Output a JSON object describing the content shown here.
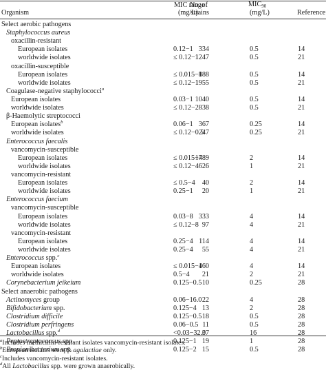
{
  "header": {
    "organism": "Organism",
    "strains_line1": "No. of",
    "strains_line2": "strains",
    "mic_range_line1": "MIC range",
    "mic_range_line2": "(mg/L)",
    "mic90_main": "MIC",
    "mic90_sub": "90",
    "mic90_line2": "(mg/L)",
    "reference": "Reference"
  },
  "rows": [
    {
      "org": "Select aerobic pathogens",
      "indent": 0
    },
    {
      "org": "Staphylococcus aureus",
      "italic": true,
      "indent": 1
    },
    {
      "org": "oxacillin-resistant",
      "indent": 2
    },
    {
      "org": "European isolates",
      "indent": 3,
      "n": "334",
      "range": "0.12−1",
      "mic90": "0.5",
      "ref": "14"
    },
    {
      "org": "worldwide isolates",
      "indent": 3,
      "n": "1247",
      "range": "≤ 0.12−1",
      "mic90": "0.5",
      "ref": "21"
    },
    {
      "org": "oxacillin-susceptible",
      "indent": 2
    },
    {
      "org": "European isolates",
      "indent": 3,
      "n": "888",
      "range": "≤ 0.015−1",
      "mic90": "0.5",
      "ref": "14"
    },
    {
      "org": "worldwide isolates",
      "indent": 3,
      "n": "1955",
      "range": "≤ 0.12−1",
      "mic90": "0.5",
      "ref": "21"
    },
    {
      "org": "Coagulase-negative staphylococci",
      "sup": "a",
      "indent": 1
    },
    {
      "org": "European isolates",
      "indent": 2,
      "n": "1040",
      "range": "0.03−1",
      "mic90": "0.5",
      "ref": "14"
    },
    {
      "org": "worldwide isolates",
      "indent": 2,
      "n": "838",
      "range": "≤ 0.12−2",
      "mic90": "0.5",
      "ref": "21"
    },
    {
      "org": "β-Haemolytic streptococci",
      "indent": 1
    },
    {
      "org": "European isolates",
      "sup": "b",
      "indent": 2,
      "n": "367",
      "range": "0.06−1",
      "mic90": "0.25",
      "ref": "14"
    },
    {
      "org": "worldwide isolates",
      "indent": 2,
      "n": "247",
      "range": "≤ 0.12−0.5",
      "mic90": "0.25",
      "ref": "21"
    },
    {
      "org": "Enterococcus faecalis",
      "italic": true,
      "indent": 1
    },
    {
      "org": "vancomycin-susceptible",
      "indent": 2
    },
    {
      "org": "European isolates",
      "indent": 3,
      "n": "1789",
      "range": "≤ 0.015−4",
      "mic90": "2",
      "ref": "14"
    },
    {
      "org": "worldwide isolates",
      "indent": 3,
      "n": "626",
      "range": "≤ 0.12−4",
      "mic90": "1",
      "ref": "21"
    },
    {
      "org": "vancomycin-resistant",
      "indent": 2
    },
    {
      "org": "European isolates",
      "indent": 3,
      "n": "40",
      "range": "≤ 0.5−4",
      "mic90": "2",
      "ref": "14"
    },
    {
      "org": "worldwide isolates",
      "indent": 3,
      "n": "20",
      "range": "0.25−1",
      "mic90": "1",
      "ref": "21"
    },
    {
      "org": "Enterococcus faecium",
      "italic": true,
      "indent": 1
    },
    {
      "org": "vancomycin-susceptible",
      "indent": 2
    },
    {
      "org": "European isolates",
      "indent": 3,
      "n": "333",
      "range": "0.03−8",
      "mic90": "4",
      "ref": "14"
    },
    {
      "org": "worldwide isolates",
      "indent": 3,
      "n": "97",
      "range": "≤ 0.12−8",
      "mic90": "4",
      "ref": "21"
    },
    {
      "org": "vancomycin-resistant",
      "indent": 2
    },
    {
      "org": "European isolates",
      "indent": 3,
      "n": "114",
      "range": "0.25−4",
      "mic90": "4",
      "ref": "14"
    },
    {
      "org": "worldwide isolates",
      "indent": 3,
      "n": "55",
      "range": "0.25−4",
      "mic90": "4",
      "ref": "21"
    },
    {
      "org": "Enterococcus",
      "italic": true,
      "suffix": " spp.",
      "sup": "c",
      "indent": 1
    },
    {
      "org": "European isolates",
      "indent": 2,
      "n": "160",
      "range": "≤ 0.015−4",
      "mic90": "4",
      "ref": "14"
    },
    {
      "org": "worldwide isolates",
      "indent": 2,
      "n": "21",
      "range": "0.5−4",
      "mic90": "2",
      "ref": "21"
    },
    {
      "org": "Corynebacterium jeikeium",
      "italic": true,
      "indent": 1,
      "n": "10",
      "range": "0.125−0.5",
      "mic90": "0.25",
      "ref": "28"
    },
    {
      "org": "Select anaerobic pathogens",
      "indent": 0
    },
    {
      "org": "Actinomyces",
      "italic": true,
      "suffix": " group",
      "indent": 1,
      "n": "22",
      "range": "0.06−16.0",
      "mic90": "4",
      "ref": "28"
    },
    {
      "org": "Bifidobacterium",
      "italic": true,
      "suffix": " spp.",
      "indent": 1,
      "n": "13",
      "range": "0.125−4",
      "mic90": "2",
      "ref": "28"
    },
    {
      "org": "Clostridium difficile",
      "italic": true,
      "indent": 1,
      "n": "18",
      "range": "0.125−0.5",
      "mic90": "0.5",
      "ref": "28"
    },
    {
      "org": "Clostridium perfringens",
      "italic": true,
      "indent": 1,
      "n": "11",
      "range": "0.06−0.5",
      "mic90": "0.5",
      "ref": "28"
    },
    {
      "org": "Lactobacillus",
      "italic": true,
      "suffix": " spp.",
      "sup": "d",
      "indent": 1,
      "n": "37",
      "range": "<0.03−32.0",
      "mic90": "16",
      "ref": "28"
    },
    {
      "org": "Peptostreptococcus",
      "italic": true,
      "suffix": " spp.",
      "indent": 1,
      "n": "19",
      "range": "0.125−1",
      "mic90": "1",
      "ref": "28"
    },
    {
      "org": "Propionibacterium",
      "italic": true,
      "suffix": " spp.",
      "indent": 1,
      "n": "15",
      "range": "0.125−2",
      "mic90": "0.5",
      "ref": "28"
    }
  ],
  "footnotes": [
    {
      "mark": "a",
      "parts": [
        {
          "t": "Includes methicillin-resistant isolates vancomycin-resistant isolates."
        }
      ]
    },
    {
      "mark": "b",
      "parts": [
        {
          "t": "European isolates were "
        },
        {
          "t": "S. agalactiae",
          "i": true
        },
        {
          "t": " only."
        }
      ]
    },
    {
      "mark": "c",
      "parts": [
        {
          "t": "Includes vancomycin-resistant isolates."
        }
      ]
    },
    {
      "mark": "d",
      "parts": [
        {
          "t": "All "
        },
        {
          "t": "Lactobacillus",
          "i": true
        },
        {
          "t": " spp. were grown anaerobically."
        }
      ]
    }
  ]
}
